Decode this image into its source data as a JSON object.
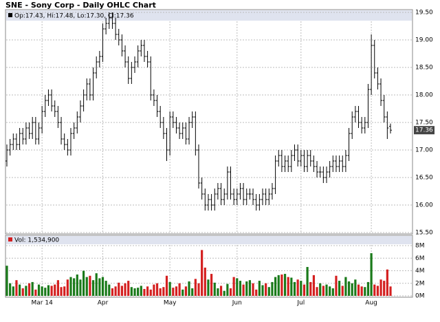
{
  "chart_data": {
    "type": "ohlc",
    "title": "SNE - Sony Corp - Daily OHLC Chart",
    "legend_text": "Op:17.43, Hi:17.48, Lo:17.30, Cl:17.36",
    "last_price": {
      "value": 17.36,
      "label": "17.36"
    },
    "color": "#000000",
    "grid": true,
    "categories": [
      null,
      null,
      null,
      null,
      null,
      null,
      null,
      null,
      null,
      null,
      null,
      "Mar 14",
      null,
      null,
      null,
      null,
      null,
      null,
      null,
      null,
      null,
      null,
      null,
      null,
      null,
      null,
      null,
      null,
      null,
      null,
      "Apr",
      null,
      null,
      null,
      null,
      null,
      null,
      null,
      null,
      null,
      null,
      null,
      null,
      null,
      null,
      null,
      null,
      null,
      null,
      null,
      null,
      "May",
      null,
      null,
      null,
      null,
      null,
      null,
      null,
      null,
      null,
      null,
      null,
      null,
      null,
      null,
      null,
      null,
      null,
      null,
      null,
      null,
      "Jun",
      null,
      null,
      null,
      null,
      null,
      null,
      null,
      null,
      null,
      null,
      null,
      null,
      null,
      null,
      null,
      null,
      null,
      null,
      null,
      "Jul",
      null,
      null,
      null,
      null,
      null,
      null,
      null,
      null,
      null,
      null,
      null,
      null,
      null,
      null,
      null,
      null,
      null,
      null,
      null,
      null,
      null,
      "Aug",
      null,
      null,
      null,
      null,
      null,
      null
    ],
    "open": [
      16.8,
      17.0,
      17.1,
      17.2,
      17.1,
      17.3,
      17.2,
      17.4,
      17.3,
      17.5,
      17.2,
      17.4,
      17.7,
      17.9,
      18.0,
      17.8,
      17.7,
      17.5,
      17.2,
      17.1,
      17.0,
      17.3,
      17.4,
      17.6,
      17.8,
      18.0,
      18.2,
      18.0,
      18.4,
      18.6,
      18.7,
      19.2,
      19.3,
      19.4,
      19.3,
      19.1,
      19.0,
      18.8,
      18.6,
      18.3,
      18.5,
      18.6,
      18.8,
      18.9,
      18.7,
      18.6,
      18.0,
      17.9,
      17.7,
      17.5,
      17.3,
      17.0,
      17.6,
      17.5,
      17.4,
      17.3,
      17.4,
      17.2,
      17.5,
      17.6,
      17.0,
      16.4,
      16.2,
      16.0,
      16.1,
      16.0,
      16.2,
      16.3,
      16.1,
      16.2,
      16.6,
      16.2,
      16.1,
      16.2,
      16.3,
      16.1,
      16.2,
      16.2,
      16.1,
      16.0,
      16.1,
      16.2,
      16.1,
      16.2,
      16.3,
      16.8,
      16.9,
      16.7,
      16.8,
      16.7,
      16.9,
      17.0,
      16.8,
      16.9,
      16.7,
      16.9,
      16.8,
      16.7,
      16.6,
      16.6,
      16.5,
      16.6,
      16.7,
      16.8,
      16.7,
      16.8,
      16.7,
      16.9,
      17.3,
      17.6,
      17.7,
      17.5,
      17.4,
      17.5,
      18.1,
      18.9,
      18.4,
      18.2,
      17.9,
      17.6,
      17.43
    ],
    "high": [
      17.1,
      17.2,
      17.3,
      17.3,
      17.4,
      17.4,
      17.5,
      17.5,
      17.6,
      17.6,
      17.5,
      17.8,
      18.0,
      18.1,
      18.1,
      17.9,
      17.8,
      17.6,
      17.3,
      17.2,
      17.4,
      17.5,
      17.7,
      17.9,
      18.1,
      18.3,
      18.3,
      18.5,
      18.7,
      18.8,
      19.3,
      19.4,
      19.5,
      19.5,
      19.4,
      19.2,
      19.1,
      18.9,
      18.7,
      18.6,
      18.7,
      18.9,
      19.0,
      19.0,
      18.8,
      18.7,
      18.1,
      18.0,
      17.8,
      17.6,
      17.4,
      17.7,
      17.7,
      17.6,
      17.5,
      17.5,
      17.5,
      17.6,
      17.7,
      17.7,
      17.1,
      16.5,
      16.3,
      16.2,
      16.2,
      16.3,
      16.4,
      16.4,
      16.3,
      16.7,
      16.7,
      16.3,
      16.3,
      16.4,
      16.4,
      16.3,
      16.3,
      16.3,
      16.2,
      16.2,
      16.3,
      16.3,
      16.3,
      16.4,
      16.9,
      17.0,
      17.0,
      16.9,
      16.9,
      17.0,
      17.1,
      17.1,
      17.0,
      17.0,
      17.0,
      17.0,
      16.9,
      16.8,
      16.7,
      16.7,
      16.7,
      16.8,
      16.9,
      16.9,
      16.9,
      16.9,
      17.0,
      17.4,
      17.7,
      17.8,
      17.8,
      17.6,
      17.6,
      18.2,
      19.1,
      19.0,
      18.5,
      18.3,
      18.0,
      17.7,
      17.48
    ],
    "low": [
      16.7,
      16.9,
      17.0,
      17.0,
      17.0,
      17.1,
      17.1,
      17.2,
      17.2,
      17.1,
      17.1,
      17.3,
      17.6,
      17.8,
      17.7,
      17.6,
      17.4,
      17.1,
      17.0,
      16.9,
      16.9,
      17.2,
      17.3,
      17.5,
      17.7,
      17.9,
      17.9,
      17.9,
      18.3,
      18.5,
      18.6,
      19.1,
      19.2,
      19.2,
      19.0,
      18.9,
      18.7,
      18.5,
      18.2,
      18.2,
      18.4,
      18.5,
      18.7,
      18.6,
      18.5,
      17.9,
      17.8,
      17.6,
      17.4,
      17.2,
      16.8,
      16.9,
      17.4,
      17.3,
      17.2,
      17.2,
      17.1,
      17.1,
      17.4,
      16.9,
      16.3,
      16.1,
      15.9,
      15.9,
      15.9,
      15.9,
      16.1,
      16.0,
      16.0,
      16.1,
      16.1,
      16.0,
      16.0,
      16.1,
      16.0,
      16.0,
      16.1,
      16.0,
      15.9,
      15.9,
      16.0,
      16.0,
      16.0,
      16.1,
      16.2,
      16.7,
      16.6,
      16.6,
      16.6,
      16.6,
      16.8,
      16.7,
      16.7,
      16.6,
      16.6,
      16.7,
      16.6,
      16.5,
      16.5,
      16.4,
      16.4,
      16.5,
      16.6,
      16.6,
      16.6,
      16.6,
      16.6,
      16.8,
      17.2,
      17.5,
      17.4,
      17.3,
      17.3,
      17.4,
      18.0,
      18.3,
      18.1,
      17.8,
      17.5,
      17.2,
      17.3
    ],
    "close": [
      17.0,
      17.1,
      17.2,
      17.1,
      17.3,
      17.2,
      17.4,
      17.3,
      17.5,
      17.2,
      17.4,
      17.7,
      17.9,
      18.0,
      17.8,
      17.7,
      17.5,
      17.2,
      17.1,
      17.0,
      17.3,
      17.4,
      17.6,
      17.8,
      18.0,
      18.2,
      18.0,
      18.4,
      18.6,
      18.7,
      19.2,
      19.3,
      19.4,
      19.3,
      19.1,
      19.0,
      18.8,
      18.6,
      18.3,
      18.5,
      18.6,
      18.8,
      18.9,
      18.7,
      18.6,
      18.0,
      17.9,
      17.7,
      17.5,
      17.3,
      17.0,
      17.6,
      17.5,
      17.4,
      17.3,
      17.4,
      17.2,
      17.5,
      17.6,
      17.0,
      16.4,
      16.2,
      16.0,
      16.1,
      16.0,
      16.2,
      16.3,
      16.1,
      16.2,
      16.6,
      16.2,
      16.1,
      16.2,
      16.3,
      16.1,
      16.2,
      16.2,
      16.1,
      16.0,
      16.1,
      16.2,
      16.1,
      16.2,
      16.3,
      16.8,
      16.9,
      16.7,
      16.8,
      16.7,
      16.9,
      17.0,
      16.8,
      16.9,
      16.7,
      16.9,
      16.8,
      16.7,
      16.6,
      16.6,
      16.5,
      16.6,
      16.7,
      16.8,
      16.7,
      16.8,
      16.7,
      16.9,
      17.3,
      17.6,
      17.7,
      17.5,
      17.4,
      17.5,
      18.1,
      18.9,
      18.4,
      18.2,
      17.9,
      17.6,
      17.4,
      17.36
    ],
    "ylim": [
      15.5,
      19.5
    ],
    "yticks": [
      {
        "value": 15.5,
        "label": "15.50"
      },
      {
        "value": 16,
        "label": "16.00"
      },
      {
        "value": 16.5,
        "label": "16.50"
      },
      {
        "value": 17,
        "label": "17.00"
      },
      {
        "value": 17.5,
        "label": "17.50"
      },
      {
        "value": 18,
        "label": "18.00"
      },
      {
        "value": 18.5,
        "label": "18.50"
      },
      {
        "value": 19,
        "label": "19.00"
      },
      {
        "value": 19.5,
        "label": "19.50"
      }
    ],
    "volume": {
      "label": "Vol: 1,534,900",
      "up_color": "#1a7a1a",
      "down_color": "#d42020",
      "values": [
        4.8,
        2.0,
        1.5,
        2.5,
        1.8,
        1.2,
        1.6,
        2.0,
        2.2,
        1.0,
        1.8,
        1.5,
        1.3,
        1.7,
        1.6,
        1.8,
        2.5,
        1.4,
        1.5,
        2.6,
        3.0,
        2.8,
        3.4,
        2.6,
        4.0,
        3.0,
        3.2,
        2.5,
        3.6,
        2.8,
        3.0,
        2.4,
        1.8,
        1.2,
        1.5,
        2.1,
        1.6,
        2.0,
        2.4,
        1.4,
        1.2,
        1.3,
        1.6,
        1.1,
        1.5,
        1.0,
        1.8,
        2.0,
        1.2,
        1.4,
        3.2,
        2.2,
        1.3,
        1.5,
        2.0,
        1.0,
        1.5,
        2.3,
        1.2,
        2.7,
        2.0,
        7.3,
        4.5,
        2.6,
        3.5,
        2.1,
        1.2,
        1.6,
        0.8,
        1.9,
        1.2,
        3.0,
        2.8,
        2.4,
        1.8,
        2.3,
        2.5,
        2.0,
        1.0,
        2.4,
        1.7,
        2.0,
        1.4,
        2.2,
        3.0,
        3.3,
        3.4,
        3.5,
        3.0,
        2.9,
        2.2,
        2.6,
        2.4,
        1.8,
        4.6,
        2.2,
        3.3,
        1.4,
        2.0,
        1.6,
        1.8,
        1.5,
        1.2,
        3.2,
        2.4,
        1.6,
        3.0,
        2.3,
        2.0,
        2.6,
        1.8,
        1.5,
        1.4,
        2.2,
        6.8,
        1.8,
        1.6,
        2.6,
        2.4,
        4.2,
        1.5
      ]
    },
    "y2lim": [
      0,
      8
    ],
    "y2ticks": [
      {
        "value": 0,
        "label": "0M"
      },
      {
        "value": 2,
        "label": "2M"
      },
      {
        "value": 4,
        "label": "4M"
      },
      {
        "value": 6,
        "label": "6M"
      },
      {
        "value": 8,
        "label": "8M"
      }
    ]
  }
}
